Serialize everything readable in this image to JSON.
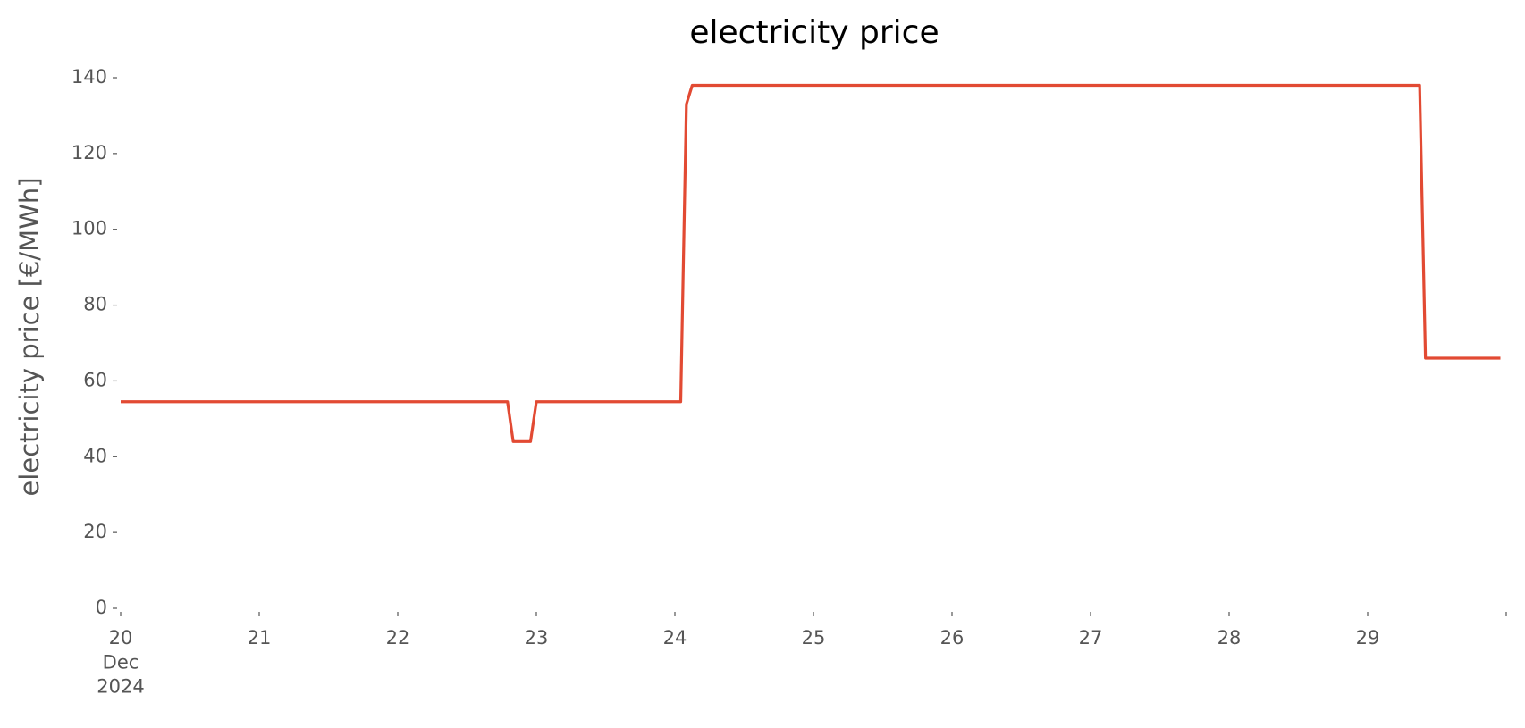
{
  "chart_data": {
    "type": "line",
    "title": "electricity price",
    "y_label": "electricity price [€/MWh]",
    "x": [
      20,
      22.792,
      22.833,
      22.958,
      23,
      24.042,
      24.083,
      24.125,
      29.375,
      29.417,
      29.958
    ],
    "series": [
      {
        "name": "electricity price",
        "color": "#e24a33",
        "values": [
          54.5,
          54.5,
          44,
          44,
          54.5,
          54.5,
          133,
          138,
          138,
          66,
          66
        ]
      }
    ],
    "xlim": [
      20,
      30
    ],
    "xticks": [
      {
        "value": 20,
        "label": "20\nDec\n2024"
      },
      21,
      22,
      23,
      24,
      25,
      26,
      27,
      28,
      29
    ],
    "ylim": [
      0,
      140
    ],
    "yticks": [
      0,
      20,
      40,
      60,
      80,
      100,
      120,
      140
    ],
    "grid": false
  }
}
